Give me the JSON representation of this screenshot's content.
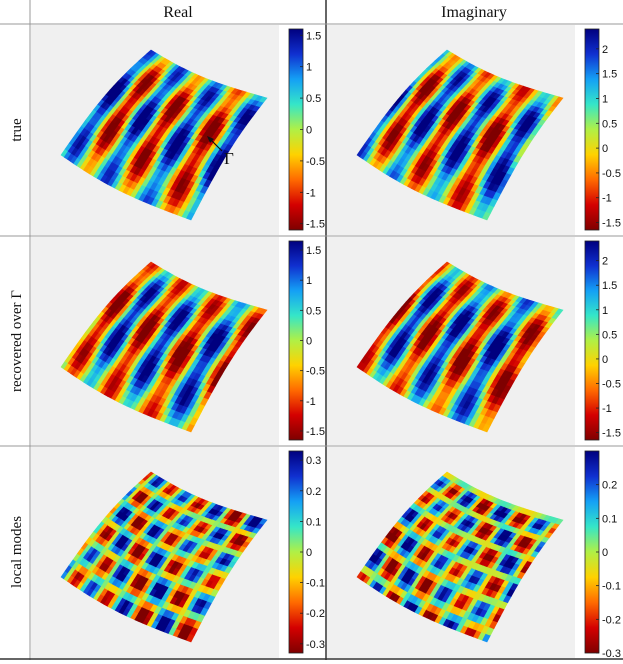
{
  "columns": [
    "Real",
    "Imaginary"
  ],
  "rows": [
    "true",
    "recovered over Γ",
    "local modes"
  ],
  "annotation": "Γ",
  "colors": {
    "panel_bg": "#f0f0f0",
    "grid_line": "#999999",
    "colormap": [
      "#7f0000",
      "#d40000",
      "#ff6a00",
      "#ffd200",
      "#b0f046",
      "#35e6c8",
      "#14a0f5",
      "#1030d0",
      "#00007f"
    ]
  },
  "panels": [
    {
      "row": "true",
      "column": "Real",
      "pattern": "waves",
      "colorbar": {
        "min": -1.6,
        "max": 1.6,
        "ticks": [
          "1.5",
          "1",
          "0.5",
          "0",
          "-0.5",
          "-1",
          "-1.5"
        ]
      }
    },
    {
      "row": "true",
      "column": "Imaginary",
      "pattern": "waves",
      "colorbar": {
        "min": -1.65,
        "max": 2.4,
        "ticks": [
          "2",
          "1.5",
          "1",
          "0.5",
          "0",
          "-0.5",
          "-1",
          "-1.5"
        ]
      }
    },
    {
      "row": "recovered over Γ",
      "column": "Real",
      "pattern": "waves",
      "colorbar": {
        "min": -1.65,
        "max": 1.65,
        "ticks": [
          "1.5",
          "1",
          "0.5",
          "0",
          "-0.5",
          "-1",
          "-1.5"
        ]
      }
    },
    {
      "row": "recovered over Γ",
      "column": "Imaginary",
      "pattern": "waves",
      "colorbar": {
        "min": -1.65,
        "max": 2.4,
        "ticks": [
          "2",
          "1.5",
          "1",
          "0.5",
          "0",
          "-0.5",
          "-1",
          "-1.5"
        ]
      }
    },
    {
      "row": "local modes",
      "column": "Real",
      "pattern": "checker",
      "colorbar": {
        "min": -0.33,
        "max": 0.33,
        "ticks": [
          "0.3",
          "0.2",
          "0.1",
          "0",
          "-0.1",
          "-0.2",
          "-0.3"
        ]
      }
    },
    {
      "row": "local modes",
      "column": "Imaginary",
      "pattern": "checker",
      "colorbar": {
        "min": -0.3,
        "max": 0.3,
        "ticks": [
          "0.2",
          "0.1",
          "0",
          "-0.1",
          "-0.2",
          "-0.3"
        ]
      }
    }
  ]
}
